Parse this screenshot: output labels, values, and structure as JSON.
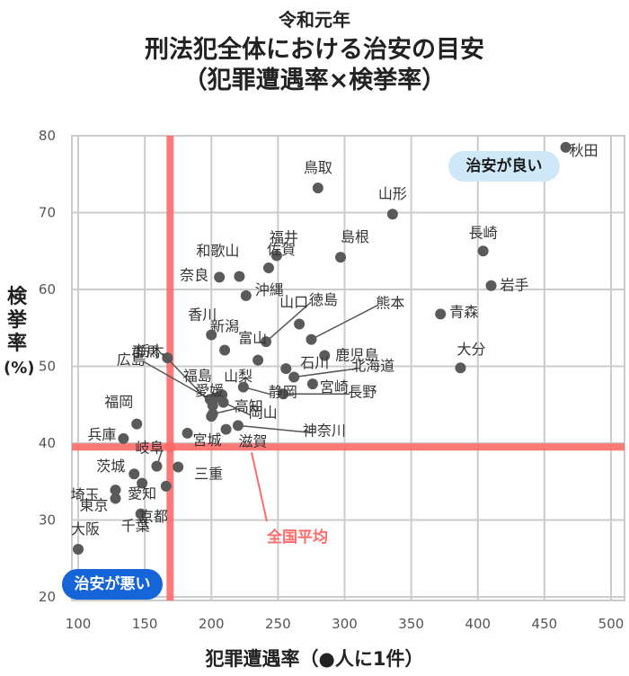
{
  "title": {
    "line1": "令和元年",
    "line2": "刑法犯全体における治安の目安",
    "line3": "（犯罪遭遇率×検挙率）"
  },
  "ylabel": "検挙率（%）",
  "xlabel": "犯罪遭遇率（●人に1件）",
  "badge_good": "治安が良い",
  "badge_bad": "治安が悪い",
  "avg_label": "全国平均",
  "colors": {
    "grid": "#cccccc",
    "point": "#5a5a5a",
    "average": "#ff6b6b",
    "text": "#333333"
  },
  "chart_data": {
    "type": "scatter",
    "xlim": [
      100,
      500
    ],
    "ylim": [
      20,
      80
    ],
    "xticks": [
      "100",
      "150",
      "200",
      "250",
      "300",
      "350",
      "400",
      "450",
      "500"
    ],
    "yticks": [
      "20",
      "30",
      "40",
      "50",
      "60",
      "70",
      "80"
    ],
    "grid": true,
    "average": {
      "x": 169,
      "y": 39.5,
      "label": "全国平均"
    },
    "points": [
      {
        "name": "秋田",
        "x": 466,
        "y": 78.5
      },
      {
        "name": "鳥取",
        "x": 280,
        "y": 73.2
      },
      {
        "name": "山形",
        "x": 336,
        "y": 69.8
      },
      {
        "name": "長崎",
        "x": 404,
        "y": 65.0
      },
      {
        "name": "岩手",
        "x": 410,
        "y": 60.5
      },
      {
        "name": "和歌山",
        "x": 221,
        "y": 61.7
      },
      {
        "name": "福井",
        "x": 249,
        "y": 64.4
      },
      {
        "name": "島根",
        "x": 297,
        "y": 64.2
      },
      {
        "name": "奈良",
        "x": 206,
        "y": 61.6
      },
      {
        "name": "佐賀",
        "x": 243,
        "y": 62.8
      },
      {
        "name": "沖縄",
        "x": 226,
        "y": 59.2
      },
      {
        "name": "徳島",
        "x": 241,
        "y": 53.2
      },
      {
        "name": "熊本",
        "x": 275,
        "y": 53.5
      },
      {
        "name": "新潟",
        "x": 210,
        "y": 52.1
      },
      {
        "name": "香川",
        "x": 200,
        "y": 54.1
      },
      {
        "name": "富山",
        "x": 235,
        "y": 50.8
      },
      {
        "name": "山口",
        "x": 266,
        "y": 55.5
      },
      {
        "name": "青森",
        "x": 372,
        "y": 56.8
      },
      {
        "name": "北海道",
        "x": 262,
        "y": 48.6
      },
      {
        "name": "大分",
        "x": 387,
        "y": 49.8
      },
      {
        "name": "鹿児島",
        "x": 285,
        "y": 51.4
      },
      {
        "name": "群馬",
        "x": 167,
        "y": 51.1
      },
      {
        "name": "石川",
        "x": 256,
        "y": 49.7
      },
      {
        "name": "福島",
        "x": 203,
        "y": 45.9
      },
      {
        "name": "山梨",
        "x": 208,
        "y": 46.3
      },
      {
        "name": "宮崎",
        "x": 276,
        "y": 47.7
      },
      {
        "name": "広島",
        "x": 199,
        "y": 45.7
      },
      {
        "name": "長野",
        "x": 254,
        "y": 46.4
      },
      {
        "name": "静岡",
        "x": 224,
        "y": 47.3
      },
      {
        "name": "栃木",
        "x": 201,
        "y": 44.9
      },
      {
        "name": "岡山",
        "x": 209,
        "y": 45.3
      },
      {
        "name": "愛媛",
        "x": 200,
        "y": 43.5
      },
      {
        "name": "高知",
        "x": 201,
        "y": 43.8
      },
      {
        "name": "神奈川",
        "x": 220,
        "y": 42.3
      },
      {
        "name": "福岡",
        "x": 144,
        "y": 42.5
      },
      {
        "name": "兵庫",
        "x": 134,
        "y": 40.6
      },
      {
        "name": "宮城",
        "x": 182,
        "y": 41.3
      },
      {
        "name": "滋賀",
        "x": 211,
        "y": 41.8
      },
      {
        "name": "岐阜",
        "x": 159,
        "y": 37.0
      },
      {
        "name": "茨城",
        "x": 142,
        "y": 36.0
      },
      {
        "name": "三重",
        "x": 175,
        "y": 36.9
      },
      {
        "name": "埼玉",
        "x": 128,
        "y": 33.9
      },
      {
        "name": "愛知",
        "x": 148,
        "y": 34.8
      },
      {
        "name": "東京",
        "x": 128,
        "y": 32.8
      },
      {
        "name": "千葉",
        "x": 147,
        "y": 30.8
      },
      {
        "name": "京都",
        "x": 166,
        "y": 34.4
      },
      {
        "name": "大阪",
        "x": 100,
        "y": 26.2
      }
    ]
  }
}
